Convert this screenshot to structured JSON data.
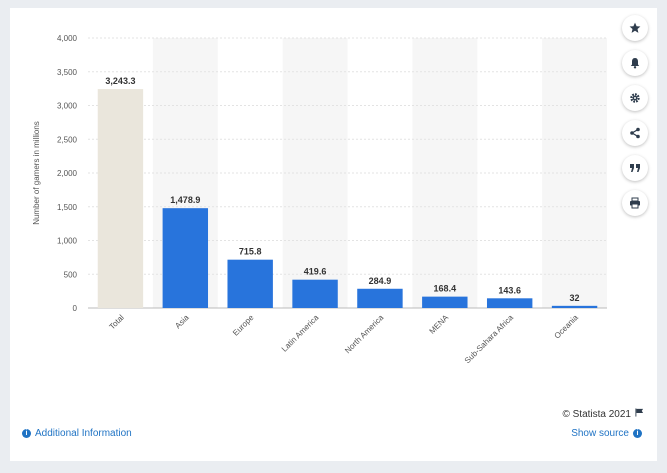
{
  "toolbar": [
    {
      "name": "star-icon"
    },
    {
      "name": "bell-icon"
    },
    {
      "name": "gear-icon"
    },
    {
      "name": "share-icon"
    },
    {
      "name": "quote-icon"
    },
    {
      "name": "print-icon"
    }
  ],
  "footer": {
    "credit": "© Statista 2021",
    "additional_info": "Additional Information",
    "show_source": "Show source"
  },
  "colors": {
    "bar": "#2874dc",
    "total_bar": "#eae6dc",
    "band": "#f6f6f6"
  },
  "chart_data": {
    "type": "bar",
    "categories": [
      "Total",
      "Asia",
      "Europe",
      "Latin America",
      "North America",
      "MENA",
      "Sub-Sahara Africa",
      "Oceania"
    ],
    "values": [
      3243.3,
      1478.9,
      715.8,
      419.6,
      284.9,
      168.4,
      143.6,
      32
    ],
    "value_labels": [
      "3,243.3",
      "1,478.9",
      "715.8",
      "419.6",
      "284.9",
      "168.4",
      "143.6",
      "32"
    ],
    "ylabel": "Number of gamers in millions",
    "ylim": [
      0,
      4000
    ],
    "yticks": [
      0,
      500,
      1000,
      1500,
      2000,
      2500,
      3000,
      3500,
      4000
    ],
    "ytick_labels": [
      "0",
      "500",
      "1,000",
      "1,500",
      "2,000",
      "2,500",
      "3,000",
      "3,500",
      "4,000"
    ],
    "grid": true
  }
}
